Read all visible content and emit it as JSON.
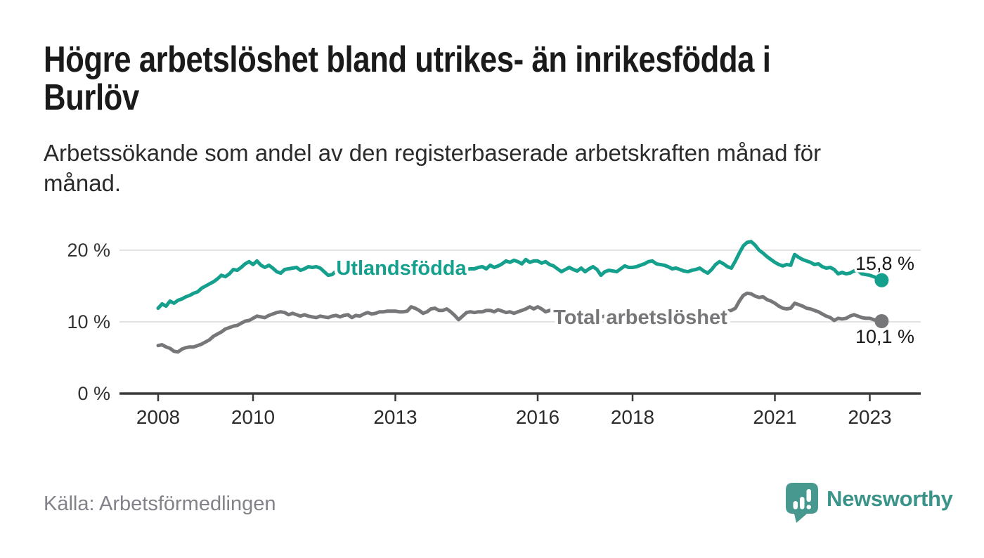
{
  "header": {
    "title": "Högre arbetslöshet bland utrikes- än inrikesfödda i\nBurlöv",
    "subtitle": "Arbetssökande som andel av den registerbaserade arbetskraften månad för\nmånad."
  },
  "chart_data": {
    "type": "line",
    "unit": "%",
    "frequency": "monthly",
    "x_start": "2008-01",
    "x_end": "2023-04",
    "ylim": [
      0,
      22
    ],
    "grid": "horizontal",
    "legend": "inline-labels",
    "x_ticks": [
      "2008",
      "2010",
      "2013",
      "2016",
      "2018",
      "2021",
      "2023"
    ],
    "y_ticks": [
      {
        "label": "0 %",
        "value": 0
      },
      {
        "label": "10 %",
        "value": 10
      },
      {
        "label": "20 %",
        "value": 20
      }
    ],
    "series": [
      {
        "name": "Utlandsfödda",
        "color": "#14a08d",
        "end_label": "15,8 %",
        "end_value": 15.8,
        "values": [
          11.9,
          12.5,
          12.2,
          12.9,
          12.6,
          13.0,
          13.2,
          13.5,
          13.7,
          14.0,
          14.2,
          14.7,
          15.0,
          15.3,
          15.6,
          16.0,
          16.5,
          16.3,
          16.7,
          17.3,
          17.2,
          17.6,
          18.1,
          18.4,
          18.0,
          18.5,
          17.9,
          17.6,
          17.9,
          17.5,
          17.0,
          16.8,
          17.3,
          17.4,
          17.5,
          17.6,
          17.2,
          17.4,
          17.7,
          17.6,
          17.7,
          17.5,
          17.0,
          16.5,
          16.6,
          17.1,
          17.0,
          17.4,
          17.2,
          17.0,
          17.3,
          17.5,
          17.2,
          16.9,
          16.7,
          17.0,
          17.3,
          17.1,
          17.4,
          17.6,
          17.3,
          17.5,
          17.7,
          17.4,
          17.2,
          17.0,
          16.8,
          17.1,
          17.4,
          17.2,
          17.5,
          17.3,
          17.1,
          17.3,
          17.6,
          17.4,
          17.2,
          17.5,
          17.3,
          17.4,
          17.4,
          17.6,
          17.7,
          17.4,
          17.9,
          17.6,
          17.8,
          18.1,
          18.5,
          18.3,
          18.6,
          18.4,
          18.1,
          18.7,
          18.3,
          18.5,
          18.5,
          18.2,
          18.4,
          18.0,
          17.8,
          17.4,
          17.0,
          17.3,
          17.6,
          17.3,
          17.1,
          17.5,
          17.0,
          17.4,
          17.7,
          17.3,
          16.5,
          17.0,
          17.2,
          17.1,
          17.0,
          17.4,
          17.8,
          17.6,
          17.6,
          17.7,
          17.9,
          18.1,
          18.4,
          18.5,
          18.1,
          18.0,
          17.9,
          17.7,
          17.4,
          17.5,
          17.3,
          17.1,
          17.0,
          17.2,
          17.3,
          17.5,
          17.1,
          16.8,
          17.3,
          18.0,
          18.4,
          18.1,
          17.7,
          17.5,
          18.5,
          19.6,
          20.6,
          21.1,
          21.2,
          20.7,
          20.0,
          19.6,
          19.1,
          18.7,
          18.3,
          18.0,
          17.8,
          18.0,
          17.9,
          19.4,
          19.0,
          18.7,
          18.5,
          18.3,
          18.0,
          18.1,
          17.7,
          17.5,
          17.6,
          17.3,
          16.7,
          16.9,
          16.7,
          16.8,
          17.1,
          17.2,
          16.7,
          16.6,
          16.5,
          16.3,
          16.1,
          15.8
        ]
      },
      {
        "name": "Total arbetslöshet",
        "color": "#77777a",
        "end_label": "10,1 %",
        "end_value": 10.1,
        "values": [
          6.7,
          6.8,
          6.5,
          6.3,
          5.9,
          5.8,
          6.2,
          6.4,
          6.5,
          6.5,
          6.7,
          6.9,
          7.2,
          7.5,
          8.0,
          8.3,
          8.6,
          9.0,
          9.2,
          9.4,
          9.5,
          9.8,
          10.1,
          10.2,
          10.5,
          10.8,
          10.7,
          10.6,
          10.9,
          11.1,
          11.3,
          11.4,
          11.3,
          11.0,
          11.2,
          11.0,
          10.8,
          11.0,
          10.8,
          10.7,
          10.6,
          10.8,
          10.7,
          10.6,
          10.8,
          10.9,
          10.7,
          10.9,
          11.0,
          10.6,
          10.9,
          10.8,
          11.1,
          11.3,
          11.1,
          11.2,
          11.4,
          11.4,
          11.5,
          11.5,
          11.5,
          11.4,
          11.4,
          11.5,
          12.1,
          11.9,
          11.6,
          11.2,
          11.4,
          11.8,
          11.9,
          11.6,
          11.6,
          11.8,
          11.4,
          10.9,
          10.3,
          10.8,
          11.3,
          11.4,
          11.3,
          11.4,
          11.4,
          11.6,
          11.6,
          11.4,
          11.7,
          11.5,
          11.3,
          11.4,
          11.2,
          11.4,
          11.6,
          11.8,
          12.1,
          11.8,
          12.1,
          11.8,
          11.4,
          11.6,
          11.5,
          11.3,
          11.2,
          11.0,
          11.1,
          11.0,
          10.9,
          11.0,
          10.9,
          10.8,
          11.0,
          10.9,
          10.7,
          10.8,
          10.6,
          10.7,
          10.8,
          10.9,
          10.8,
          10.9,
          10.8,
          10.9,
          11.0,
          10.9,
          11.1,
          11.0,
          10.9,
          10.8,
          10.9,
          10.8,
          10.7,
          10.8,
          10.7,
          10.8,
          10.9,
          10.8,
          10.9,
          11.0,
          10.9,
          11.0,
          11.1,
          11.2,
          11.3,
          11.4,
          11.5,
          11.6,
          11.9,
          12.9,
          13.7,
          14.0,
          13.9,
          13.6,
          13.4,
          13.5,
          13.1,
          12.9,
          12.6,
          12.2,
          11.9,
          11.8,
          11.9,
          12.6,
          12.4,
          12.2,
          11.9,
          11.8,
          11.6,
          11.4,
          11.1,
          10.8,
          10.6,
          10.2,
          10.5,
          10.4,
          10.5,
          10.8,
          11.0,
          10.8,
          10.6,
          10.5,
          10.5,
          10.3,
          10.2,
          10.1
        ]
      }
    ]
  },
  "footer": {
    "source": "Källa: Arbetsförmedlingen",
    "brand": "Newsworthy",
    "brand_color": "#3b948a",
    "icon_color": "#47998f"
  }
}
